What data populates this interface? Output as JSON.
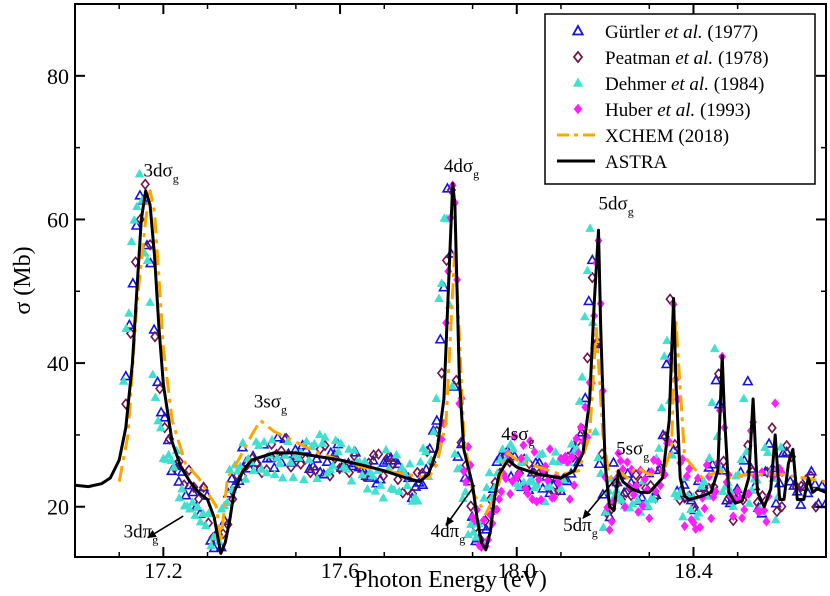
{
  "chart_data": {
    "type": "line",
    "xlabel": "Photon Energy (eV)",
    "ylabel": "σ (Mb)",
    "xlim": [
      17.0,
      18.7
    ],
    "ylim": [
      13.0,
      90.0
    ],
    "xticks": [
      17.2,
      17.6,
      18.0,
      18.4
    ],
    "xtick_labels": [
      "17.2",
      "17.6",
      "18.0",
      "18.4"
    ],
    "yticks": [
      20,
      40,
      60,
      80
    ],
    "ytick_labels": [
      "20",
      "40",
      "60",
      "80"
    ],
    "legend": [
      {
        "text": "Gürtler ",
        "italic": "et al.",
        "tail": " (1977)",
        "marker": "triangle-open",
        "color": "#1414dc"
      },
      {
        "text": "Peatman ",
        "italic": "et al.",
        "tail": " (1978)",
        "marker": "diamond-open",
        "color": "#6e1450"
      },
      {
        "text": "Dehmer ",
        "italic": "et al.",
        "tail": " (1984)",
        "marker": "triangle-filled",
        "color": "#40e0d0"
      },
      {
        "text": "Huber ",
        "italic": "et al.",
        "tail": " (1993)",
        "marker": "diamond-filled",
        "color": "#ff1eff"
      },
      {
        "text": "XCHEM (2018)",
        "italic": "",
        "tail": "",
        "marker": "dash",
        "color": "#ffa500"
      },
      {
        "text": "ASTRA",
        "italic": "",
        "tail": "",
        "marker": "line",
        "color": "#000000"
      }
    ],
    "annotations": [
      {
        "base": "3dσ",
        "sub": "g",
        "x": 17.155,
        "y": 66.0
      },
      {
        "base": "4dσ",
        "sub": "g",
        "x": 17.835,
        "y": 66.6
      },
      {
        "base": "5dσ",
        "sub": "g",
        "x": 18.185,
        "y": 61.4
      },
      {
        "base": "3sσ",
        "sub": "g",
        "x": 17.405,
        "y": 33.8
      },
      {
        "base": "4sσ",
        "sub": "g",
        "x": 17.965,
        "y": 29.3
      },
      {
        "base": "5sσ",
        "sub": "g",
        "x": 18.225,
        "y": 27.3
      },
      {
        "base": "3dπ",
        "sub": "g",
        "x": 17.11,
        "y": 15.7,
        "arrow_from": [
          17.165,
          15.7
        ],
        "arrow_to": [
          17.245,
          18.7
        ]
      },
      {
        "base": "4dπ",
        "sub": "g",
        "x": 17.805,
        "y": 15.8,
        "arrow_from": [
          17.84,
          17.4
        ],
        "arrow_to": [
          17.905,
          23.0
        ]
      },
      {
        "base": "5dπ",
        "sub": "g",
        "x": 18.105,
        "y": 16.6,
        "arrow_from": [
          18.15,
          18.4
        ],
        "arrow_to": [
          18.225,
          24.0
        ]
      }
    ],
    "series": [
      {
        "name": "ASTRA",
        "style": "line",
        "color": "#000000",
        "x": [
          17.0,
          17.03,
          17.06,
          17.08,
          17.1,
          17.115,
          17.13,
          17.14,
          17.15,
          17.16,
          17.17,
          17.18,
          17.19,
          17.2,
          17.22,
          17.24,
          17.26,
          17.28,
          17.3,
          17.315,
          17.33,
          17.34,
          17.35,
          17.36,
          17.38,
          17.4,
          17.45,
          17.5,
          17.55,
          17.6,
          17.65,
          17.7,
          17.75,
          17.78,
          17.8,
          17.82,
          17.835,
          17.845,
          17.855,
          17.86,
          17.865,
          17.87,
          17.88,
          17.9,
          17.91,
          17.92,
          17.93,
          17.94,
          17.945,
          17.95,
          17.96,
          17.98,
          18.0,
          18.05,
          18.1,
          18.13,
          18.15,
          18.165,
          18.175,
          18.185,
          18.19,
          18.2,
          18.21,
          18.22,
          18.225,
          18.23,
          18.24,
          18.26,
          18.28,
          18.3,
          18.33,
          18.345,
          18.355,
          18.36,
          18.37,
          18.38,
          18.39,
          18.42,
          18.44,
          18.455,
          18.465,
          18.47,
          18.48,
          18.495,
          18.51,
          18.525,
          18.535,
          18.545,
          18.56,
          18.575,
          18.585,
          18.595,
          18.605,
          18.615,
          18.625,
          18.635,
          18.65,
          18.66,
          18.67,
          18.68,
          18.7
        ],
        "y": [
          23.0,
          22.8,
          23.2,
          24.0,
          26.5,
          31.0,
          40.0,
          50.0,
          60.0,
          64.0,
          62.0,
          55.0,
          45.0,
          37.0,
          29.0,
          25.5,
          23.5,
          22.0,
          21.0,
          18.5,
          13.5,
          15.0,
          18.0,
          22.0,
          25.0,
          26.5,
          27.5,
          27.5,
          27.0,
          26.5,
          25.8,
          25.0,
          24.0,
          23.5,
          24.5,
          28.0,
          35.0,
          50.0,
          65.0,
          62.0,
          50.0,
          38.0,
          28.0,
          23.0,
          18.5,
          15.0,
          14.0,
          16.5,
          19.0,
          21.5,
          24.5,
          26.5,
          25.5,
          24.5,
          24.0,
          25.0,
          27.5,
          35.0,
          48.0,
          58.5,
          45.0,
          26.0,
          20.0,
          19.5,
          22.0,
          25.0,
          23.5,
          22.5,
          22.0,
          22.0,
          24.0,
          32.0,
          49.0,
          38.0,
          24.0,
          21.5,
          21.0,
          21.5,
          22.0,
          25.0,
          41.0,
          33.0,
          22.0,
          20.5,
          20.8,
          24.0,
          35.0,
          22.0,
          20.0,
          22.5,
          30.0,
          21.0,
          21.0,
          26.0,
          28.0,
          21.0,
          21.0,
          24.0,
          22.0,
          22.5,
          22.0
        ]
      },
      {
        "name": "XCHEM (2018)",
        "style": "dash",
        "color": "#ffa500",
        "x": [
          17.1,
          17.12,
          17.14,
          17.16,
          17.17,
          17.18,
          17.19,
          17.2,
          17.22,
          17.25,
          17.28,
          17.3,
          17.32,
          17.33,
          17.345,
          17.37,
          17.4,
          17.42,
          17.45,
          17.5,
          17.55,
          17.6,
          17.65,
          17.7,
          17.75,
          17.8,
          17.82,
          17.84,
          17.855,
          17.86,
          17.87,
          17.88,
          17.9,
          17.93,
          17.955,
          17.97,
          17.98,
          18.0,
          18.05,
          18.1,
          18.14,
          18.165,
          18.18,
          18.195,
          18.21,
          18.23,
          18.25,
          18.27,
          18.3,
          18.33,
          18.35,
          18.36,
          18.38,
          18.42,
          18.46,
          18.48,
          18.52,
          18.6,
          18.7
        ],
        "y": [
          23.5,
          30.0,
          48.0,
          60.0,
          64.0,
          61.0,
          52.0,
          42.0,
          32.0,
          26.0,
          24.0,
          22.0,
          20.0,
          15.0,
          24.0,
          26.5,
          30.0,
          32.0,
          30.5,
          29.0,
          27.5,
          26.5,
          25.5,
          25.0,
          24.5,
          24.0,
          26.0,
          32.0,
          50.0,
          56.0,
          44.0,
          30.0,
          22.0,
          19.0,
          22.0,
          26.0,
          27.5,
          26.5,
          25.5,
          24.5,
          25.0,
          30.0,
          45.0,
          30.0,
          24.0,
          25.0,
          24.0,
          25.5,
          24.5,
          24.5,
          28.0,
          46.0,
          27.0,
          24.0,
          25.0,
          24.0,
          24.5,
          24.5,
          23.5
        ]
      }
    ]
  }
}
